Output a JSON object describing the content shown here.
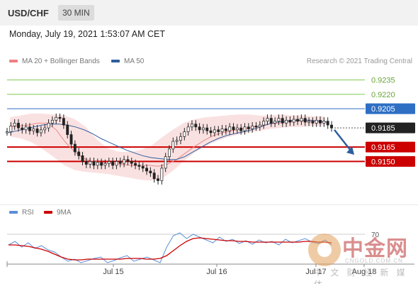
{
  "header": {
    "pair": "USD/CHF",
    "timeframe": "30 MIN"
  },
  "datetime": "Monday, July 19, 2021 1:53:07 AM CET",
  "legend": {
    "ma20": {
      "label": "MA 20 + Bollinger Bands",
      "color": "#f08080"
    },
    "ma50": {
      "label": "MA 50",
      "color": "#2f5e9e"
    }
  },
  "credit": "Research © 2021 Trading Central",
  "rsi_legend": {
    "rsi": {
      "label": "RSI",
      "color": "#5b8fd8"
    },
    "ma9": {
      "label": "9MA",
      "color": "#cc0000"
    }
  },
  "watermark": {
    "cn": "中金网",
    "url": "CNGOLD.COM.CN",
    "sub": "中 文 财 经 新 媒 体"
  },
  "chart_data": {
    "type": "line",
    "title": "USD/CHF",
    "ylim": [
      0.91,
      0.9248
    ],
    "x_ticks": [
      "Jul 15",
      "Jul 16",
      "Jul 17",
      "Aug 18"
    ],
    "price_levels": [
      {
        "value": 0.9235,
        "label": "0.9235",
        "style": "target",
        "color": "#7ec850"
      },
      {
        "value": 0.922,
        "label": "0.9220",
        "style": "target",
        "color": "#7ec850"
      },
      {
        "value": 0.9205,
        "label": "0.9205",
        "style": "pivot",
        "color": "#2e6fc4"
      },
      {
        "value": 0.9185,
        "label": "0.9185",
        "style": "current",
        "color": "#222222"
      },
      {
        "value": 0.9165,
        "label": "0.9165",
        "style": "support",
        "color": "#cc0000"
      },
      {
        "value": 0.915,
        "label": "0.9150",
        "style": "support",
        "color": "#cc0000"
      }
    ],
    "series": [
      {
        "values": [
          0.9181,
          0.9187,
          0.919,
          0.9185,
          0.9183,
          0.9186,
          0.9182,
          0.9184,
          0.918,
          0.9183,
          0.9185,
          0.919,
          0.9193,
          0.9196,
          0.9195,
          0.9188,
          0.9178,
          0.9168,
          0.916,
          0.9156,
          0.915,
          0.9147,
          0.915,
          0.9146,
          0.9149,
          0.9146,
          0.9148,
          0.915,
          0.9146,
          0.915,
          0.9148,
          0.9152,
          0.915,
          0.9148,
          0.9146,
          0.9145,
          0.9143,
          0.914,
          0.9138,
          0.9132,
          0.913,
          0.9143,
          0.9155,
          0.9163,
          0.9171,
          0.9172,
          0.9176,
          0.9181,
          0.9186,
          0.9189,
          0.9186,
          0.9183,
          0.9185,
          0.9182,
          0.918,
          0.9183,
          0.9181,
          0.9184,
          0.9182,
          0.9186,
          0.9183,
          0.9185,
          0.9182,
          0.9186,
          0.9184,
          0.9187,
          0.9186,
          0.9188,
          0.9192,
          0.9195,
          0.919,
          0.9192,
          0.9195,
          0.919,
          0.9193,
          0.9191,
          0.9194,
          0.9192,
          0.9195,
          0.9191,
          0.9192,
          0.919,
          0.9193,
          0.919,
          0.9192,
          0.9188,
          0.9185
        ]
      },
      {
        "name": "MA 50",
        "values": [
          0.918,
          0.9182,
          0.9184,
          0.9186,
          0.9188,
          0.9189,
          0.9189,
          0.9188,
          0.9186,
          0.9183,
          0.9179,
          0.9174,
          0.917,
          0.9166,
          0.9162,
          0.9159,
          0.9156,
          0.9154,
          0.9153,
          0.9152,
          0.9152,
          0.9155,
          0.916,
          0.9165,
          0.917,
          0.9174,
          0.9177,
          0.9179,
          0.9181,
          0.9183,
          0.9186,
          0.9189,
          0.9191,
          0.9192,
          0.9193,
          0.9193,
          0.9193,
          0.9192,
          0.9191
        ]
      },
      {
        "name": "MA 20",
        "values": [
          0.9186,
          0.9187,
          0.9188,
          0.919,
          0.919,
          0.9183,
          0.917,
          0.916,
          0.9153,
          0.915,
          0.9149,
          0.9148,
          0.9147,
          0.9146,
          0.9146,
          0.9146,
          0.9145,
          0.9147,
          0.9152,
          0.9159,
          0.9166,
          0.9172,
          0.9177,
          0.918,
          0.9182,
          0.9184,
          0.9185,
          0.9187,
          0.9189,
          0.919,
          0.9191,
          0.9192,
          0.9192,
          0.9192,
          0.9191
        ]
      }
    ],
    "bollinger": {
      "upper": [
        0.9196,
        0.9198,
        0.92,
        0.92,
        0.9199,
        0.9198,
        0.9194,
        0.9186,
        0.9173,
        0.9164,
        0.916,
        0.916,
        0.9162,
        0.9166,
        0.9175,
        0.9183,
        0.919,
        0.9194,
        0.9196,
        0.9197,
        0.9198,
        0.9199,
        0.9199,
        0.9198,
        0.9198,
        0.9199,
        0.9198,
        0.9198,
        0.9197,
        0.9197
      ],
      "lower": [
        0.9176,
        0.9174,
        0.917,
        0.9163,
        0.9155,
        0.9146,
        0.9141,
        0.9139,
        0.9138,
        0.9137,
        0.9135,
        0.9133,
        0.9131,
        0.913,
        0.9132,
        0.914,
        0.915,
        0.9159,
        0.9166,
        0.9171,
        0.9175,
        0.9178,
        0.918,
        0.9182,
        0.9184,
        0.9185,
        0.9186,
        0.9186,
        0.9187,
        0.9187
      ]
    },
    "forecast_arrow": {
      "from": 0.9183,
      "to": 0.9157
    },
    "rsi": {
      "level": 70,
      "rsi_values": [
        55,
        60,
        52,
        58,
        50,
        54,
        48,
        45,
        38,
        32,
        35,
        30,
        33,
        36,
        38,
        30,
        33,
        37,
        40,
        32,
        35,
        38,
        34,
        30,
        52,
        68,
        72,
        64,
        70,
        66,
        62,
        58,
        66,
        60,
        63,
        57,
        61,
        56,
        62,
        58,
        60,
        55,
        63,
        58,
        61,
        64,
        59,
        57,
        62,
        55
      ],
      "ma9_values": [
        55,
        55,
        54,
        53,
        51,
        49,
        46,
        42,
        38,
        35,
        34,
        34,
        35,
        35,
        35,
        35,
        35,
        35,
        36,
        36,
        36,
        35,
        35,
        36,
        40,
        47,
        54,
        60,
        64,
        65,
        64,
        63,
        62,
        61,
        61,
        60,
        60,
        59,
        59,
        59,
        59,
        59,
        59,
        59,
        59,
        60,
        60,
        59,
        59,
        58
      ]
    }
  }
}
